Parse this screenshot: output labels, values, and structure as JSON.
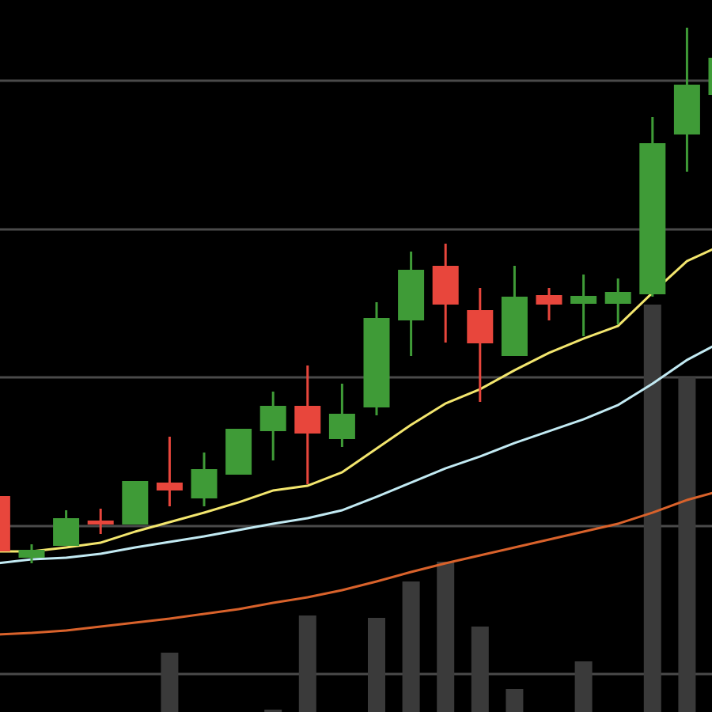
{
  "chart_data": {
    "type": "candlestick",
    "categories": [
      null,
      null,
      null,
      null,
      null,
      null,
      null,
      null,
      null,
      null,
      null,
      null,
      null,
      null,
      null,
      null,
      null,
      null,
      null,
      null,
      null,
      null
    ],
    "open": [
      273,
      195,
      210,
      242,
      237,
      290,
      270,
      300,
      355,
      387,
      345,
      385,
      495,
      564,
      508,
      450,
      527,
      516,
      516,
      528,
      730,
      780
    ],
    "high": [
      273,
      212,
      255,
      257,
      292,
      348,
      328,
      358,
      405,
      438,
      415,
      518,
      582,
      592,
      536,
      564,
      536,
      553,
      548,
      752,
      865,
      827
    ],
    "low": [
      140,
      188,
      210,
      225,
      237,
      260,
      260,
      300,
      318,
      288,
      335,
      375,
      450,
      467,
      392,
      450,
      495,
      475,
      490,
      525,
      683,
      775
    ],
    "close": [
      203,
      205,
      245,
      237,
      292,
      280,
      307,
      358,
      387,
      352,
      377,
      498,
      559,
      515,
      466,
      525,
      515,
      526,
      531,
      719,
      793,
      827
    ],
    "up_color": "#3f9b37",
    "down_color": "#e8463c",
    "series": [
      {
        "color": "#f3e66e",
        "values": [
          203,
          203,
          208,
          214,
          228,
          240,
          252,
          265,
          280,
          286,
          303,
          333,
          363,
          390,
          408,
          432,
          454,
          472,
          488,
          530,
          570,
          590
        ]
      },
      {
        "color": "#c2eaf3",
        "values": [
          188,
          193,
          195,
          200,
          208,
          215,
          222,
          230,
          238,
          245,
          255,
          272,
          290,
          308,
          323,
          340,
          355,
          370,
          388,
          415,
          445,
          468
        ]
      },
      {
        "color": "#d9622b",
        "values": [
          98,
          100,
          103,
          108,
          113,
          118,
          124,
          130,
          138,
          145,
          154,
          165,
          177,
          188,
          198,
          208,
          218,
          228,
          238,
          252,
          268,
          280
        ]
      }
    ],
    "volume": {
      "color": "#3a3a3a",
      "axis": "y2",
      "values": [
        null,
        null,
        null,
        null,
        null,
        75,
        null,
        null,
        3,
        122,
        null,
        119,
        165,
        190,
        108,
        29,
        null,
        64,
        null,
        515,
        423,
        null
      ]
    },
    "ylim": [
      0,
      900
    ],
    "yticks": [
      48,
      235,
      423,
      610,
      798
    ],
    "y2lim": [
      0,
      900
    ],
    "grid": true
  }
}
